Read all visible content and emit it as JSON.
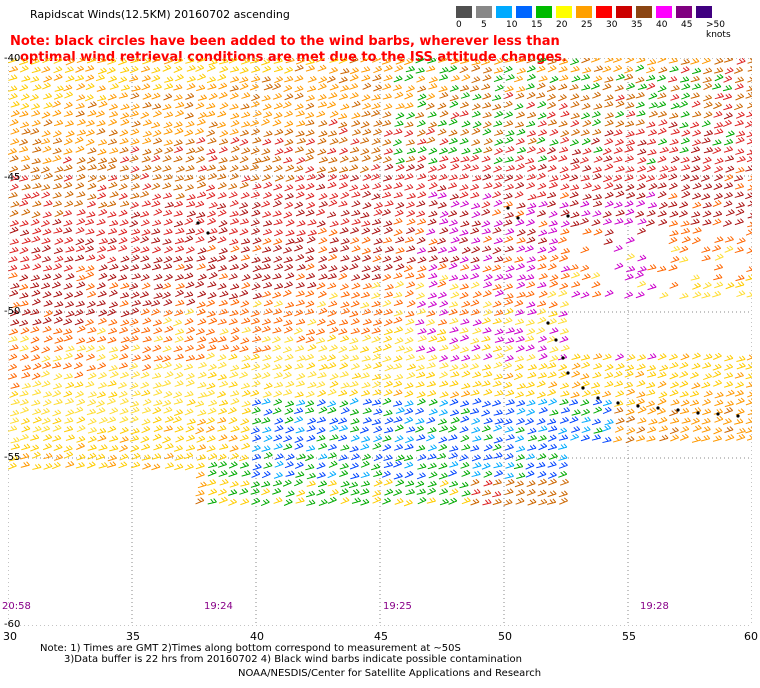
{
  "title": "Rapidscat Winds(12.5KM) 20160702 ascending",
  "note": {
    "line1": "Note: black circles have been added to the wind barbs, wherever less than",
    "line2": "optimal wind retrieval conditions are met due to the ISS attitude changes."
  },
  "legend": {
    "labels": [
      "0",
      "5",
      "10",
      "15",
      "20",
      "25",
      "30",
      "35",
      "40",
      "45",
      ">50 knots"
    ],
    "colors": [
      "#505050",
      "#888888",
      "#00aaff",
      "#0066ff",
      "#00bb00",
      "#ffff00",
      "#ffa000",
      "#ff0000",
      "#cc0000",
      "#8b4513",
      "#ff00ff",
      "#800080",
      "#400080"
    ]
  },
  "axes": {
    "lat_labels": [
      "-40",
      "-45",
      "-50",
      "-55",
      "-60"
    ],
    "lon_labels": [
      "30",
      "35",
      "40",
      "45",
      "50",
      "55",
      "60"
    ]
  },
  "times": [
    "20:58",
    "19:24",
    "19:25",
    "19:28"
  ],
  "footer": {
    "line1": "Note: 1) Times are GMT 2)Times along bottom correspond to measurement at ~50S",
    "line2": "3)Data buffer is 22 hrs from 20160702 4) Black wind barbs indicate possible contamination",
    "line3": "NOAA/NESDIS/Center for Satellite Applications and Research"
  },
  "colors": {
    "note": "#ff0000",
    "time": "#880088",
    "grid": "#888888"
  }
}
